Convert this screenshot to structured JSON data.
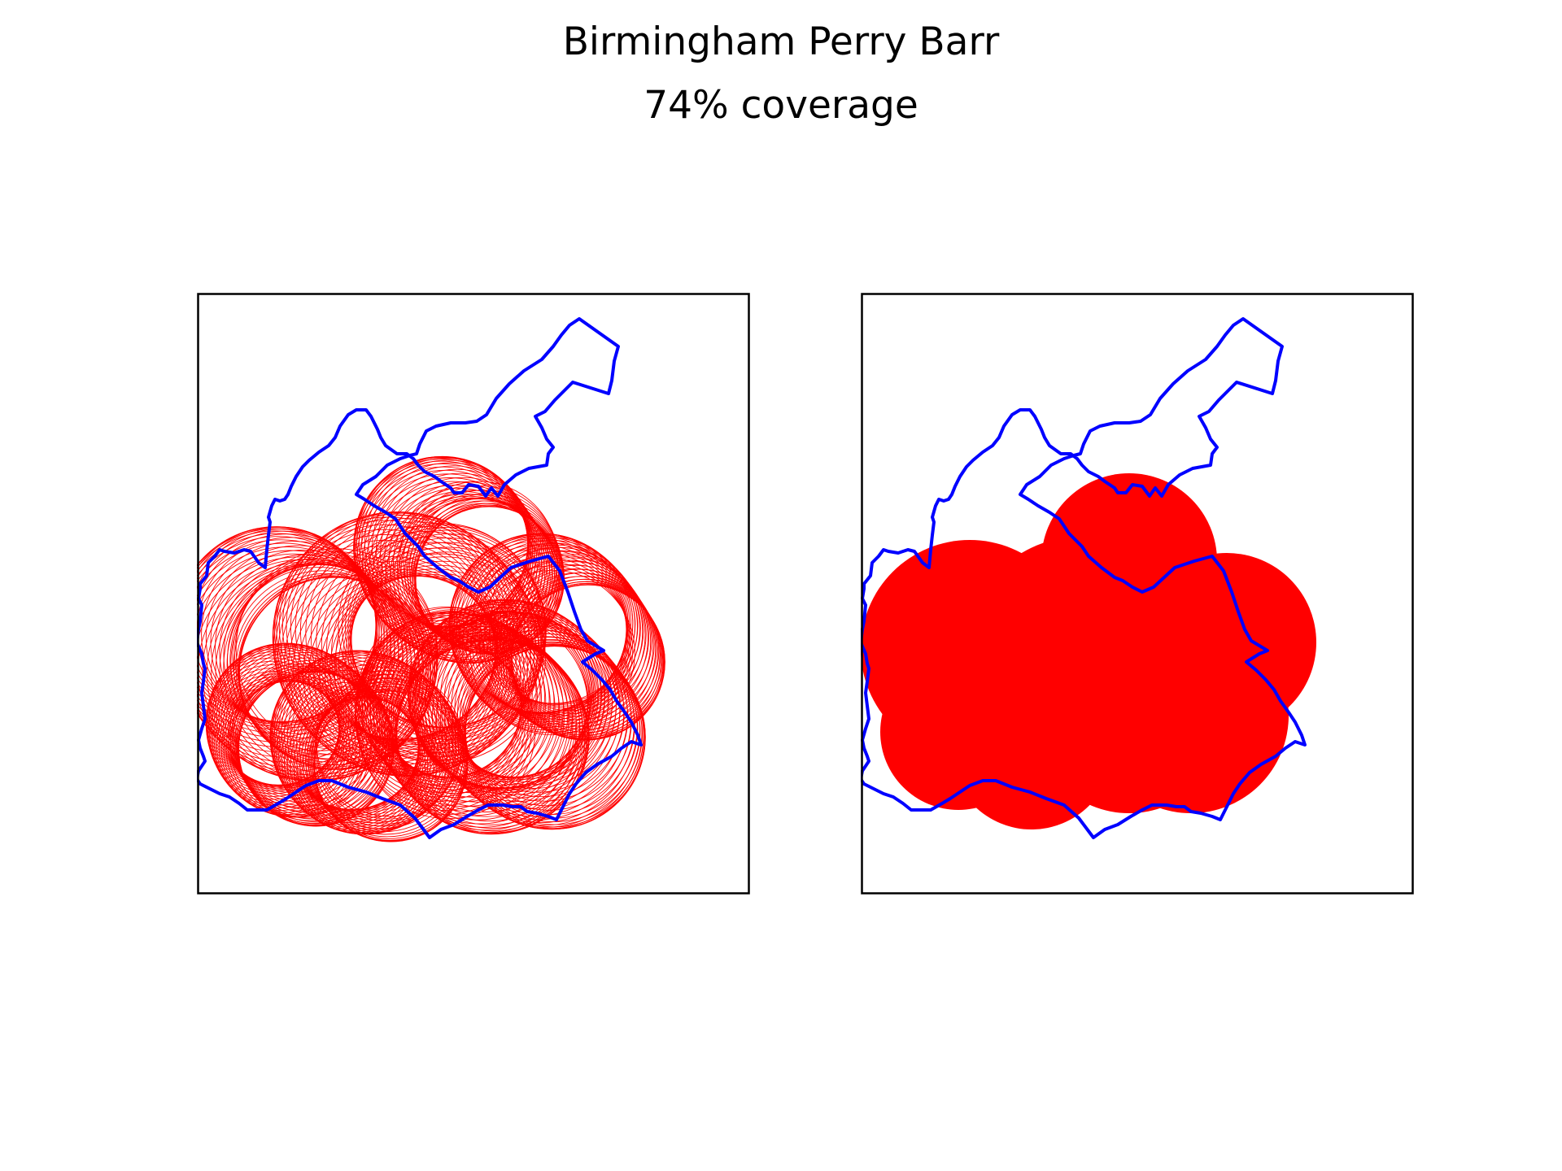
{
  "figure": {
    "title": "Birmingham Perry Barr",
    "subtitle": "74% coverage"
  },
  "colors": {
    "boundary": "#0000ff",
    "coverage": "#ff0000",
    "frame": "#000000",
    "background": "#ffffff"
  },
  "panels": [
    {
      "name": "circle-outlines",
      "style": "outline"
    },
    {
      "name": "merged-coverage",
      "style": "filled"
    }
  ]
}
